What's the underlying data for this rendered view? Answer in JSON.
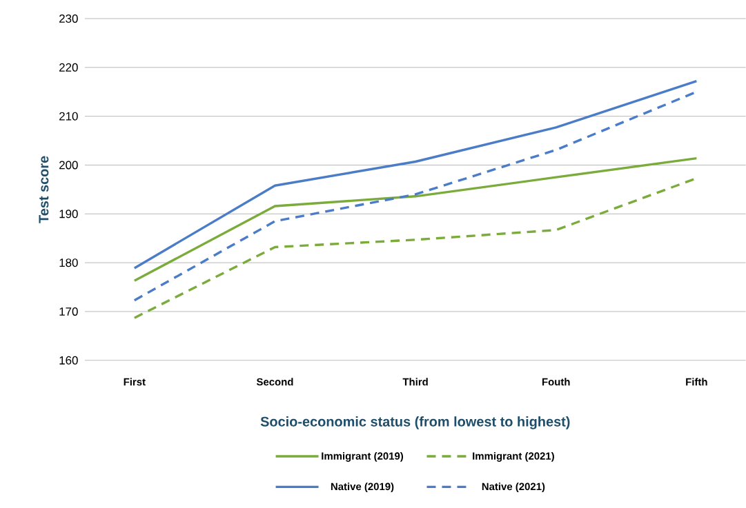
{
  "chart_data": {
    "type": "line",
    "xlabel": "Socio-economic status (from lowest to highest)",
    "ylabel": "Test score",
    "categories": [
      "First",
      "Second",
      "Third",
      "Fouth",
      "Fifth"
    ],
    "series": [
      {
        "name": "Immigrant (2019)",
        "color": "#7aab3b",
        "line_style": "solid",
        "values": [
          176.3,
          191.6,
          193.6,
          197.5,
          201.4
        ]
      },
      {
        "name": "Immigrant (2021)",
        "color": "#7aab3b",
        "line_style": "dashed",
        "values": [
          168.7,
          183.2,
          184.7,
          186.7,
          197.3
        ]
      },
      {
        "name": "Native (2019)",
        "color": "#4a7cc8",
        "line_style": "solid",
        "values": [
          178.9,
          195.8,
          200.7,
          207.7,
          217.2
        ]
      },
      {
        "name": "Native (2021)",
        "color": "#4a7cc8",
        "line_style": "dashed",
        "values": [
          172.3,
          188.5,
          194.0,
          203.1,
          215.0
        ]
      }
    ],
    "ylim": [
      160,
      230
    ],
    "yticks": [
      160,
      170,
      180,
      190,
      200,
      210,
      220,
      230
    ],
    "grid": "y",
    "legend": "bottom"
  }
}
